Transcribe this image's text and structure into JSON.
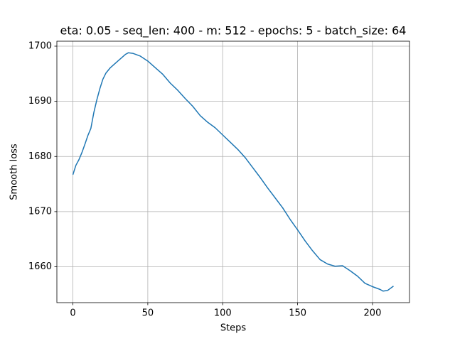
{
  "chart_data": {
    "type": "line",
    "title": "eta: 0.05 - seq_len: 400 - m: 512 - epochs: 5 - batch_size: 64",
    "x_label": "Steps",
    "y_label": "Smooth loss",
    "x": [
      0,
      2,
      4,
      6,
      8,
      10,
      12,
      14,
      16,
      18,
      20,
      22,
      25,
      30,
      35,
      37,
      40,
      45,
      50,
      55,
      60,
      65,
      70,
      75,
      80,
      85,
      90,
      95,
      100,
      105,
      110,
      115,
      120,
      125,
      130,
      135,
      140,
      145,
      150,
      155,
      160,
      165,
      170,
      175,
      180,
      185,
      190,
      195,
      200,
      205,
      207,
      210,
      214
    ],
    "series": [
      {
        "name": "Smooth loss",
        "color": "#1f77b4",
        "values": [
          1676.7,
          1678.4,
          1679.4,
          1680.7,
          1682.2,
          1683.8,
          1685.1,
          1688.0,
          1690.3,
          1692.3,
          1694.0,
          1695.1,
          1696.1,
          1697.3,
          1698.5,
          1698.8,
          1698.7,
          1698.2,
          1697.3,
          1696.1,
          1694.9,
          1693.3,
          1692.0,
          1690.5,
          1689.1,
          1687.4,
          1686.2,
          1685.2,
          1683.9,
          1682.6,
          1681.3,
          1679.8,
          1678.0,
          1676.2,
          1674.3,
          1672.5,
          1670.7,
          1668.6,
          1666.7,
          1664.7,
          1662.9,
          1661.3,
          1660.5,
          1660.1,
          1660.2,
          1659.3,
          1658.3,
          1657.0,
          1656.4,
          1655.9,
          1655.6,
          1655.7,
          1656.5
        ]
      }
    ],
    "xlim": [
      -10.7,
      224.7
    ],
    "ylim": [
      1653.5,
      1700.9
    ],
    "xticks": [
      0,
      50,
      100,
      150,
      200
    ],
    "yticks": [
      1660,
      1670,
      1680,
      1690,
      1700
    ],
    "grid": true
  }
}
